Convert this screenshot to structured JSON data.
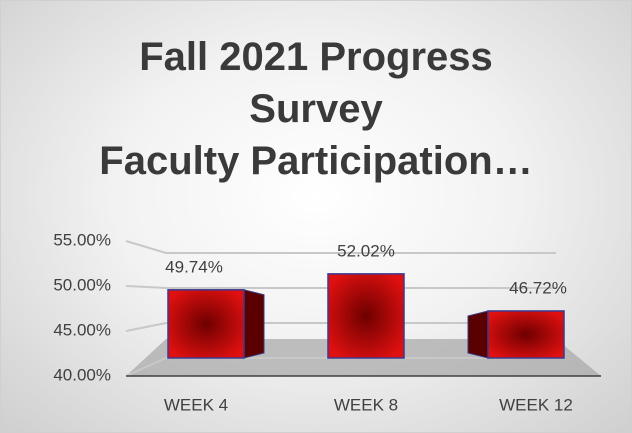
{
  "chart_data": {
    "type": "bar",
    "title": [
      "Fall 2021 Progress Survey",
      "Faculty Participation…"
    ],
    "categories": [
      "WEEK 4",
      "WEEK 8",
      "WEEK 12"
    ],
    "values": [
      49.74,
      52.02,
      46.72
    ],
    "value_labels": [
      "49.74%",
      "52.02%",
      "46.72%"
    ],
    "color": "#c00000",
    "ylim": [
      40,
      55
    ],
    "yticks": [
      {
        "value": 40,
        "label": "40.00%"
      },
      {
        "value": 45,
        "label": "45.00%"
      },
      {
        "value": 50,
        "label": "50.00%"
      },
      {
        "value": 55,
        "label": "55.00%"
      }
    ],
    "grid": true
  }
}
